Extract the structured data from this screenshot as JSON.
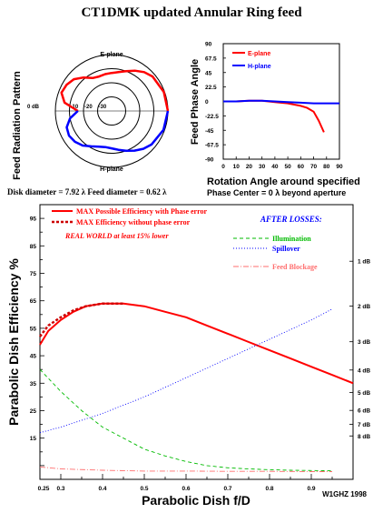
{
  "title": "CT1DMK updated Annular Ring feed",
  "credit": "W1GHZ 1998",
  "dish_info": "Disk diameter = 7.92 λ Feed diameter = 0.62 λ",
  "colors": {
    "red": "#ff0000",
    "blue": "#0000ff",
    "green": "#00bb00",
    "pink": "#ff6f6f",
    "black": "#000000"
  },
  "chart_data": [
    {
      "type": "polar",
      "ylabel": "Feed Radiation Pattern",
      "ring_labels": [
        "0 dB",
        "-10",
        "-20",
        "-30"
      ],
      "series": [
        {
          "name": "E-plane",
          "angle_deg": [
            0,
            20,
            40,
            50,
            60,
            70,
            80,
            90,
            100,
            110,
            120,
            130,
            140,
            150,
            160,
            170,
            180
          ],
          "db": [
            0,
            -0.5,
            -2,
            -4,
            -7,
            -10,
            -12,
            -13,
            -13.5,
            -14,
            -13,
            -9,
            -5,
            -3,
            -2,
            -6,
            -16
          ]
        },
        {
          "name": "H-plane",
          "angle_deg": [
            0,
            20,
            40,
            50,
            60,
            70,
            80,
            90,
            100,
            110,
            120,
            130,
            140,
            150,
            160,
            170,
            180
          ],
          "db": [
            0,
            -0.8,
            -3,
            -5,
            -7.5,
            -10,
            -12,
            -13.5,
            -14,
            -13,
            -11,
            -8,
            -6,
            -5,
            -6,
            -10,
            -16
          ]
        }
      ]
    },
    {
      "type": "line",
      "ylabel": "Feed Phase Angle",
      "xlabel": "Rotation Angle around specified",
      "note": "Phase Center = 0 λ beyond aperture",
      "xlim": [
        0,
        90
      ],
      "ylim": [
        -90,
        90
      ],
      "xticks": [
        0,
        10,
        20,
        30,
        40,
        50,
        60,
        70,
        80,
        90
      ],
      "yticks": [
        "90",
        "67.5",
        "45",
        "22.5",
        "0",
        "-22.5",
        "-45",
        "-67.5",
        "-90"
      ],
      "series": [
        {
          "name": "E-plane",
          "x": [
            0,
            10,
            20,
            30,
            40,
            50,
            60,
            65,
            70,
            74,
            78
          ],
          "y": [
            0,
            0,
            1,
            1,
            -1,
            -3,
            -7,
            -10,
            -16,
            -30,
            -48
          ]
        },
        {
          "name": "H-plane",
          "x": [
            0,
            10,
            20,
            30,
            40,
            50,
            60,
            70,
            80,
            90
          ],
          "y": [
            0,
            0,
            1,
            1,
            0,
            -1,
            -2,
            -3,
            -3,
            -3
          ]
        }
      ]
    },
    {
      "type": "line",
      "xlabel": "Parabolic Dish f/D",
      "ylabel": "Parabolic Dish Efficiency %",
      "xlim": [
        0.25,
        1.0
      ],
      "ylim": [
        0,
        100
      ],
      "xticks": [
        "0.25",
        "0.3",
        "0.4",
        "0.5",
        "0.6",
        "0.7",
        "0.8",
        "0.9"
      ],
      "yticks": [
        "15",
        "25",
        "35",
        "45",
        "55",
        "65",
        "75",
        "85",
        "95"
      ],
      "db_labels": [
        "1 dB",
        "2 dB",
        "3 dB",
        "4 dB",
        "5 dB",
        "6 dB",
        "7 dB",
        "8 dB"
      ],
      "db_values_pct": [
        79.4,
        63.1,
        50.1,
        39.8,
        31.6,
        25.1,
        20.0,
        15.8
      ],
      "legend": {
        "max_phase": "MAX Possible Efficiency with Phase error",
        "max_nophase": "MAX Efficiency without phase error",
        "real_world": "REAL WORLD at least 15% lower",
        "after_losses": "AFTER LOSSES:",
        "illumination": "Illumination",
        "spillover": "Spillover",
        "blockage": "Feed Blockage"
      },
      "series": [
        {
          "name": "MAX Possible Efficiency with Phase error",
          "x": [
            0.25,
            0.27,
            0.3,
            0.33,
            0.36,
            0.4,
            0.45,
            0.5,
            0.55,
            0.6,
            0.65,
            0.7,
            0.75,
            0.8,
            0.85,
            0.9,
            0.95,
            1.0
          ],
          "y": [
            49,
            54,
            58,
            61,
            63,
            64,
            64,
            63,
            61,
            59,
            56,
            53,
            50,
            47,
            44,
            41,
            38,
            35
          ]
        },
        {
          "name": "MAX Efficiency without phase error",
          "x": [
            0.25,
            0.27,
            0.3,
            0.33,
            0.36,
            0.4,
            0.45
          ],
          "y": [
            52,
            56,
            59,
            61.5,
            63,
            64,
            64
          ]
        },
        {
          "name": "Illumination",
          "x": [
            0.25,
            0.3,
            0.35,
            0.4,
            0.45,
            0.5,
            0.55,
            0.6,
            0.65,
            0.7,
            0.75,
            0.8,
            0.85,
            0.9,
            0.95
          ],
          "y": [
            40,
            32,
            25,
            19,
            15,
            11,
            8.5,
            6.5,
            5,
            4.2,
            3.8,
            3.5,
            3.3,
            3.2,
            3.1
          ]
        },
        {
          "name": "Spillover",
          "x": [
            0.25,
            0.3,
            0.4,
            0.5,
            0.6,
            0.7,
            0.8,
            0.9,
            0.95
          ],
          "y": [
            17,
            19,
            24,
            30,
            37,
            44,
            51,
            58,
            62
          ]
        },
        {
          "name": "Feed Blockage",
          "x": [
            0.25,
            0.3,
            0.4,
            0.5,
            0.6,
            0.7,
            0.8,
            0.9,
            0.95
          ],
          "y": [
            4.5,
            3.8,
            3.3,
            3.0,
            3.0,
            2.9,
            2.9,
            2.8,
            2.8
          ]
        }
      ]
    }
  ]
}
